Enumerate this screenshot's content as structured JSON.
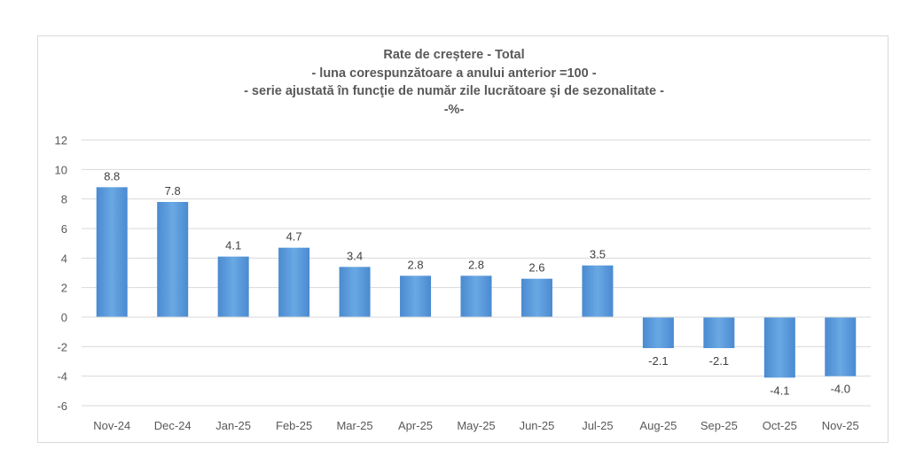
{
  "chart_data": {
    "type": "bar",
    "title": "Rate de creștere - Total",
    "subtitles": [
      "- luna corespunzătoare a anului anterior =100 -",
      "- serie ajustată în funcţie de număr zile lucrătoare şi de sezonalitate -",
      "-%-"
    ],
    "categories": [
      "Nov-24",
      "Dec-24",
      "Jan-25",
      "Feb-25",
      "Mar-25",
      "Apr-25",
      "May-25",
      "Jun-25",
      "Jul-25",
      "Aug-25",
      "Sep-25",
      "Oct-25",
      "Nov-25"
    ],
    "values": [
      8.8,
      7.8,
      4.1,
      4.7,
      3.4,
      2.8,
      2.8,
      2.6,
      3.5,
      -2.1,
      -2.1,
      -4.1,
      -4.0
    ],
    "ylim": [
      -6,
      12
    ],
    "yticks": [
      -6,
      -4,
      -2,
      0,
      2,
      4,
      6,
      8,
      10,
      12
    ],
    "grid": true,
    "legend": "none",
    "bar_color": "#5b9bd5",
    "xlabel": "",
    "ylabel": ""
  }
}
